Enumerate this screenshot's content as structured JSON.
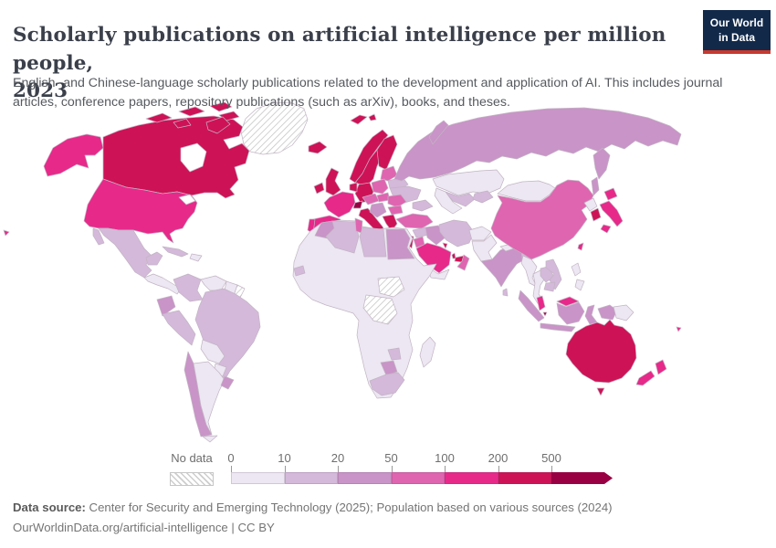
{
  "header": {
    "title_line1": "Scholarly publications on artificial intelligence per million people,",
    "title_line2": "2023",
    "subtitle": "English- and Chinese-language scholarly publications related to the development and application of AI. This includes journal articles, conference papers, repository publications (such as arXiv), books, and theses.",
    "logo": {
      "line1": "Our World",
      "line2": "in Data",
      "bg": "#12294a",
      "accent": "#c8392e"
    }
  },
  "footer": {
    "source_label": "Data source:",
    "source_text": " Center for Security and Emerging Technology (2025); Population based on various sources (2024)",
    "attribution": "OurWorldinData.org/artificial-intelligence | CC BY"
  },
  "chart_data": {
    "type": "choropleth",
    "title": "Scholarly publications on artificial intelligence per million people, 2023",
    "unit": "publications per million people",
    "projection": "world map",
    "no_data_label": "No data",
    "bin_edges": [
      "0",
      "10",
      "20",
      "50",
      "100",
      "200",
      "500"
    ],
    "bin_labels": [
      "0-10",
      "10-20",
      "20-50",
      "50-100",
      "100-200",
      "200-500",
      "500+"
    ],
    "bin_colors": [
      "#ece7f2",
      "#d4b9da",
      "#c994c7",
      "#df65b0",
      "#e7298a",
      "#ce1256",
      "#980043"
    ],
    "border_color": "#c2b4c4",
    "ocean_color": "#ffffff",
    "legend_position": "bottom",
    "countries": [
      {
        "id": "united-states",
        "name": "United States",
        "bin": 4
      },
      {
        "id": "canada",
        "name": "Canada",
        "bin": 5
      },
      {
        "id": "greenland",
        "name": "Greenland",
        "bin": -1
      },
      {
        "id": "iceland",
        "name": "Iceland",
        "bin": 5
      },
      {
        "id": "mexico",
        "name": "Mexico",
        "bin": 1
      },
      {
        "id": "central-america",
        "name": "Central America",
        "bin": 0
      },
      {
        "id": "cuba",
        "name": "Cuba",
        "bin": 1
      },
      {
        "id": "hispaniola",
        "name": "Haiti & Dominican Republic",
        "bin": 0
      },
      {
        "id": "colombia",
        "name": "Colombia",
        "bin": 1
      },
      {
        "id": "venezuela",
        "name": "Venezuela",
        "bin": 0
      },
      {
        "id": "guyana-suriname",
        "name": "Guyana & Suriname",
        "bin": 0
      },
      {
        "id": "french-guiana",
        "name": "French Guiana",
        "bin": -1
      },
      {
        "id": "ecuador",
        "name": "Ecuador",
        "bin": 2
      },
      {
        "id": "peru",
        "name": "Peru",
        "bin": 1
      },
      {
        "id": "brazil",
        "name": "Brazil",
        "bin": 1
      },
      {
        "id": "bolivia",
        "name": "Bolivia",
        "bin": 0
      },
      {
        "id": "paraguay",
        "name": "Paraguay",
        "bin": 0
      },
      {
        "id": "chile",
        "name": "Chile",
        "bin": 2
      },
      {
        "id": "argentina",
        "name": "Argentina",
        "bin": 0
      },
      {
        "id": "uruguay",
        "name": "Uruguay",
        "bin": 2
      },
      {
        "id": "ireland",
        "name": "Ireland",
        "bin": 5
      },
      {
        "id": "united-kingdom",
        "name": "United Kingdom",
        "bin": 5
      },
      {
        "id": "norway",
        "name": "Norway",
        "bin": 5
      },
      {
        "id": "sweden",
        "name": "Sweden",
        "bin": 5
      },
      {
        "id": "finland",
        "name": "Finland",
        "bin": 5
      },
      {
        "id": "denmark",
        "name": "Denmark",
        "bin": 5
      },
      {
        "id": "baltics",
        "name": "Baltic states",
        "bin": 3
      },
      {
        "id": "belarus",
        "name": "Belarus",
        "bin": 1
      },
      {
        "id": "ukraine",
        "name": "Ukraine",
        "bin": 1
      },
      {
        "id": "poland",
        "name": "Poland",
        "bin": 3
      },
      {
        "id": "germany",
        "name": "Germany",
        "bin": 5
      },
      {
        "id": "benelux",
        "name": "Netherlands & Belgium",
        "bin": 5
      },
      {
        "id": "france",
        "name": "France",
        "bin": 4
      },
      {
        "id": "spain",
        "name": "Spain",
        "bin": 4
      },
      {
        "id": "portugal",
        "name": "Portugal",
        "bin": 4
      },
      {
        "id": "switzerland",
        "name": "Switzerland",
        "bin": 6
      },
      {
        "id": "czechia-austria",
        "name": "Czechia & Austria",
        "bin": 3
      },
      {
        "id": "italy",
        "name": "Italy",
        "bin": 5
      },
      {
        "id": "hungary-slovakia",
        "name": "Hungary & Slovakia",
        "bin": 3
      },
      {
        "id": "romania",
        "name": "Romania",
        "bin": 3
      },
      {
        "id": "western-balkans",
        "name": "Western Balkans",
        "bin": 2
      },
      {
        "id": "bulgaria",
        "name": "Bulgaria",
        "bin": 3
      },
      {
        "id": "greece",
        "name": "Greece",
        "bin": 5
      },
      {
        "id": "russia",
        "name": "Russia",
        "bin": 2
      },
      {
        "id": "kazakhstan",
        "name": "Kazakhstan",
        "bin": 0
      },
      {
        "id": "uzbekistan",
        "name": "Uzbekistan",
        "bin": 1
      },
      {
        "id": "turkmenistan",
        "name": "Turkmenistan",
        "bin": 0
      },
      {
        "id": "kyrgyzstan-tajikistan",
        "name": "Kyrgyzstan & Tajikistan",
        "bin": 1
      },
      {
        "id": "caucasus",
        "name": "Caucasus",
        "bin": 1
      },
      {
        "id": "turkey",
        "name": "Turkey",
        "bin": 3
      },
      {
        "id": "syria",
        "name": "Syria",
        "bin": 1
      },
      {
        "id": "israel",
        "name": "Israel",
        "bin": 5
      },
      {
        "id": "jordan",
        "name": "Jordan",
        "bin": 3
      },
      {
        "id": "iraq",
        "name": "Iraq",
        "bin": 2
      },
      {
        "id": "saudi-arabia",
        "name": "Saudi Arabia",
        "bin": 4
      },
      {
        "id": "kuwait",
        "name": "Kuwait",
        "bin": 5
      },
      {
        "id": "qatar",
        "name": "Qatar",
        "bin": 5
      },
      {
        "id": "united-arab-emirates",
        "name": "United Arab Emirates",
        "bin": 5
      },
      {
        "id": "oman",
        "name": "Oman",
        "bin": 3
      },
      {
        "id": "yemen",
        "name": "Yemen",
        "bin": 0
      },
      {
        "id": "iran",
        "name": "Iran",
        "bin": 1
      },
      {
        "id": "afghanistan",
        "name": "Afghanistan",
        "bin": 0
      },
      {
        "id": "pakistan",
        "name": "Pakistan",
        "bin": 0
      },
      {
        "id": "india",
        "name": "India",
        "bin": 2
      },
      {
        "id": "sri-lanka",
        "name": "Sri Lanka",
        "bin": 1
      },
      {
        "id": "nepal",
        "name": "Nepal",
        "bin": 0
      },
      {
        "id": "bangladesh",
        "name": "Bangladesh",
        "bin": 1
      },
      {
        "id": "china",
        "name": "China",
        "bin": 3
      },
      {
        "id": "mongolia",
        "name": "Mongolia",
        "bin": 0
      },
      {
        "id": "north-korea",
        "name": "North Korea",
        "bin": 0
      },
      {
        "id": "south-korea",
        "name": "South Korea",
        "bin": 5
      },
      {
        "id": "japan",
        "name": "Japan",
        "bin": 4
      },
      {
        "id": "taiwan",
        "name": "Taiwan",
        "bin": 4
      },
      {
        "id": "myanmar",
        "name": "Myanmar",
        "bin": 0
      },
      {
        "id": "thailand",
        "name": "Thailand",
        "bin": 0
      },
      {
        "id": "laos",
        "name": "Laos",
        "bin": 1
      },
      {
        "id": "vietnam",
        "name": "Vietnam",
        "bin": 1
      },
      {
        "id": "cambodia",
        "name": "Cambodia",
        "bin": 1
      },
      {
        "id": "malaysia",
        "name": "Malaysia",
        "bin": 4
      },
      {
        "id": "singapore",
        "name": "Singapore",
        "bin": 6
      },
      {
        "id": "indonesia",
        "name": "Indonesia",
        "bin": 2
      },
      {
        "id": "philippines",
        "name": "Philippines",
        "bin": 0
      },
      {
        "id": "papua-new-guinea",
        "name": "Papua New Guinea",
        "bin": 0
      },
      {
        "id": "timor",
        "name": "Timor-Leste",
        "bin": 0
      },
      {
        "id": "australia",
        "name": "Australia",
        "bin": 5
      },
      {
        "id": "new-zealand",
        "name": "New Zealand",
        "bin": 4
      },
      {
        "id": "fiji",
        "name": "Fiji",
        "bin": 4
      },
      {
        "id": "africa-other",
        "name": "Other African countries",
        "bin": 0
      },
      {
        "id": "morocco",
        "name": "Morocco",
        "bin": 2
      },
      {
        "id": "algeria",
        "name": "Algeria",
        "bin": 1
      },
      {
        "id": "tunisia",
        "name": "Tunisia",
        "bin": 3
      },
      {
        "id": "libya",
        "name": "Libya",
        "bin": 1
      },
      {
        "id": "egypt",
        "name": "Egypt",
        "bin": 2
      },
      {
        "id": "senegal",
        "name": "Senegal",
        "bin": 1
      },
      {
        "id": "south-sudan",
        "name": "South Sudan",
        "bin": -1
      },
      {
        "id": "democratic-republic-of-congo",
        "name": "Democratic Republic of Congo",
        "bin": -1
      },
      {
        "id": "botswana",
        "name": "Botswana",
        "bin": 2
      },
      {
        "id": "zimbabwe",
        "name": "Zimbabwe",
        "bin": 1
      },
      {
        "id": "south-africa",
        "name": "South Africa",
        "bin": 1
      },
      {
        "id": "madagascar",
        "name": "Madagascar",
        "bin": 0
      }
    ]
  }
}
